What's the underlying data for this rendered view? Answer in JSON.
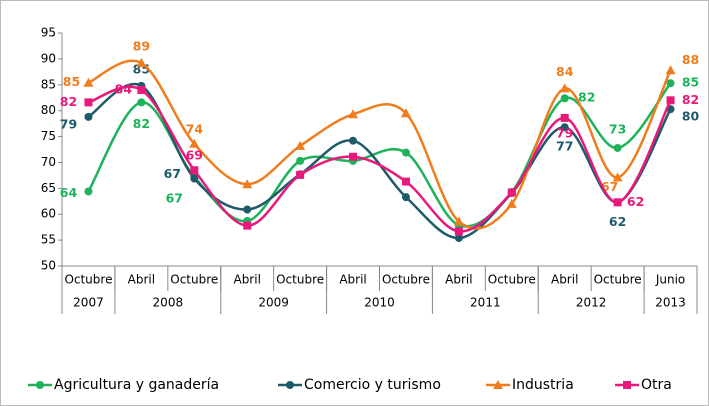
{
  "chart_data": {
    "type": "line",
    "categories": [
      "Octubre",
      "Abril",
      "Octubre",
      "Abril",
      "Octubre",
      "Abril",
      "Octubre",
      "Abril",
      "Octubre",
      "Abril",
      "Octubre",
      "Junio"
    ],
    "x_groups": [
      {
        "label": "2007",
        "count": 1
      },
      {
        "label": "2008",
        "count": 2
      },
      {
        "label": "2009",
        "count": 2
      },
      {
        "label": "2010",
        "count": 2
      },
      {
        "label": "2011",
        "count": 2
      },
      {
        "label": "2012",
        "count": 2
      },
      {
        "label": "2013",
        "count": 1
      }
    ],
    "ylim": [
      50,
      95
    ],
    "yticks": [
      50,
      55,
      60,
      65,
      70,
      75,
      80,
      85,
      90,
      95
    ],
    "grid": false,
    "smooth": true,
    "legend": "bottom",
    "series": [
      {
        "name": "Agricultura y ganadería",
        "color": "#1db35a",
        "marker": "circle",
        "values": [
          64.4,
          81.6,
          67.2,
          58.7,
          70.3,
          70.3,
          71.9,
          57.9,
          64.3,
          82.4,
          72.8,
          85.3
        ],
        "value_labels": [
          "64",
          "82",
          "67",
          null,
          null,
          null,
          null,
          null,
          null,
          "82",
          "73",
          "85"
        ]
      },
      {
        "name": "Comercio y turismo",
        "color": "#1f5a6b",
        "marker": "circle",
        "values": [
          78.8,
          84.8,
          66.9,
          60.9,
          67.7,
          74.2,
          63.3,
          55.4,
          64.1,
          76.8,
          62.3,
          80.3
        ],
        "value_labels": [
          "79",
          "85",
          "67",
          null,
          null,
          null,
          null,
          null,
          null,
          "77",
          "62",
          "80"
        ]
      },
      {
        "name": "Industria",
        "color": "#f07d1d",
        "marker": "triangle",
        "values": [
          85.4,
          89.2,
          73.6,
          65.8,
          73.2,
          79.3,
          79.5,
          58.6,
          62.0,
          84.3,
          67.1,
          87.8
        ],
        "value_labels": [
          "85",
          "89",
          "74",
          null,
          null,
          null,
          null,
          null,
          null,
          "84",
          "67",
          "88"
        ]
      },
      {
        "name": "Otra",
        "color": "#e8197a",
        "marker": "square",
        "values": [
          81.6,
          84.0,
          68.5,
          57.8,
          67.6,
          71.1,
          66.3,
          56.7,
          64.2,
          78.6,
          62.3,
          82.0
        ],
        "value_labels": [
          "82",
          "84",
          "69",
          null,
          null,
          null,
          null,
          null,
          null,
          "79",
          "62",
          "82"
        ]
      }
    ]
  }
}
